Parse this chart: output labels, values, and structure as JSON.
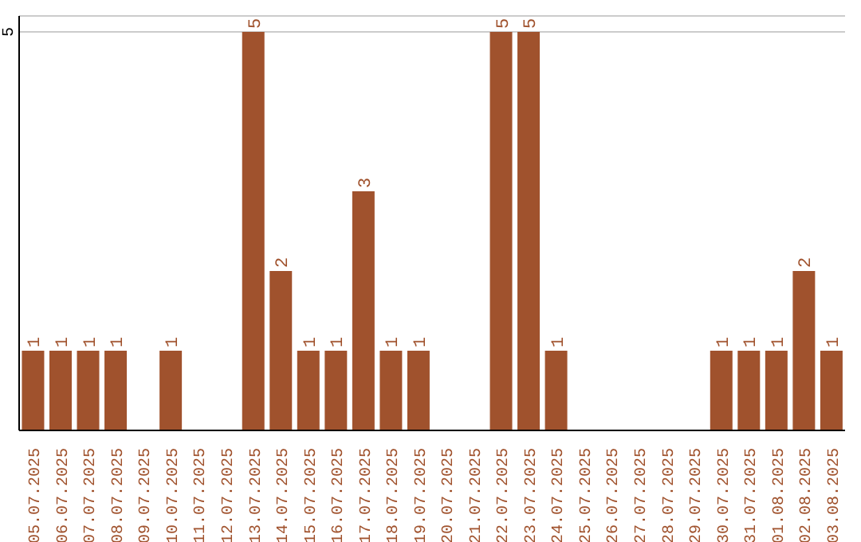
{
  "chart_data": {
    "type": "bar",
    "categories": [
      "05.07.2025",
      "06.07.2025",
      "07.07.2025",
      "08.07.2025",
      "09.07.2025",
      "10.07.2025",
      "11.07.2025",
      "12.07.2025",
      "13.07.2025",
      "14.07.2025",
      "15.07.2025",
      "16.07.2025",
      "17.07.2025",
      "18.07.2025",
      "19.07.2025",
      "20.07.2025",
      "21.07.2025",
      "22.07.2025",
      "23.07.2025",
      "24.07.2025",
      "25.07.2025",
      "26.07.2025",
      "27.07.2025",
      "28.07.2025",
      "29.07.2025",
      "30.07.2025",
      "31.07.2025",
      "01.08.2025",
      "02.08.2025",
      "03.08.2025"
    ],
    "values": [
      1,
      1,
      1,
      1,
      0,
      1,
      0,
      0,
      5,
      2,
      1,
      1,
      3,
      1,
      1,
      0,
      0,
      5,
      5,
      1,
      0,
      0,
      0,
      0,
      0,
      1,
      1,
      1,
      2,
      1
    ],
    "value_labels": [
      "1",
      "1",
      "1",
      "1",
      null,
      "1",
      null,
      null,
      "5",
      "2",
      "1",
      "1",
      "3",
      "1",
      "1",
      null,
      null,
      "5",
      "5",
      "1",
      null,
      null,
      null,
      null,
      null,
      "1",
      "1",
      "1",
      "2",
      "1"
    ],
    "color": "#a0522d",
    "ylim": [
      0,
      5.2
    ],
    "yticks": [
      5
    ],
    "grid": "y"
  }
}
